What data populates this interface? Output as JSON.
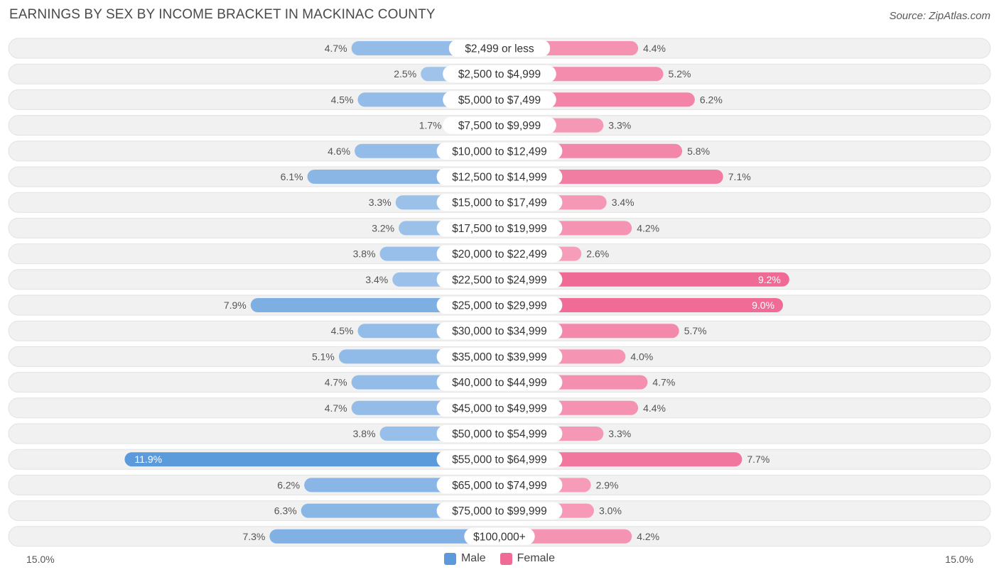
{
  "title": "EARNINGS BY SEX BY INCOME BRACKET IN MACKINAC COUNTY",
  "source": "Source: ZipAtlas.com",
  "colors": {
    "male_light": "#a8c8ec",
    "male_dark": "#5b9bdc",
    "female_light": "#f7a7c0",
    "female_dark": "#f06a96",
    "row_bg": "#f1f1f1"
  },
  "legend": {
    "male": "Male",
    "female": "Female"
  },
  "chart_data": {
    "type": "bar",
    "orientation": "horizontal-diverging",
    "title": "EARNINGS BY SEX BY INCOME BRACKET IN MACKINAC COUNTY",
    "axis_min_label": "15.0%",
    "axis_max_label": "15.0%",
    "xlim": [
      -15,
      15
    ],
    "categories": [
      "$2,499 or less",
      "$2,500 to $4,999",
      "$5,000 to $7,499",
      "$7,500 to $9,999",
      "$10,000 to $12,499",
      "$12,500 to $14,999",
      "$15,000 to $17,499",
      "$17,500 to $19,999",
      "$20,000 to $22,499",
      "$22,500 to $24,999",
      "$25,000 to $29,999",
      "$30,000 to $34,999",
      "$35,000 to $39,999",
      "$40,000 to $44,999",
      "$45,000 to $49,999",
      "$50,000 to $54,999",
      "$55,000 to $64,999",
      "$65,000 to $74,999",
      "$75,000 to $99,999",
      "$100,000+"
    ],
    "series": [
      {
        "name": "Male",
        "values": [
          4.7,
          2.5,
          4.5,
          1.7,
          4.6,
          6.1,
          3.3,
          3.2,
          3.8,
          3.4,
          7.9,
          4.5,
          5.1,
          4.7,
          4.7,
          3.8,
          11.9,
          6.2,
          6.3,
          7.3
        ],
        "labels": [
          "4.7%",
          "2.5%",
          "4.5%",
          "1.7%",
          "4.6%",
          "6.1%",
          "3.3%",
          "3.2%",
          "3.8%",
          "3.4%",
          "7.9%",
          "4.5%",
          "5.1%",
          "4.7%",
          "4.7%",
          "3.8%",
          "11.9%",
          "6.2%",
          "6.3%",
          "7.3%"
        ]
      },
      {
        "name": "Female",
        "values": [
          4.4,
          5.2,
          6.2,
          3.3,
          5.8,
          7.1,
          3.4,
          4.2,
          2.6,
          9.2,
          9.0,
          5.7,
          4.0,
          4.7,
          4.4,
          3.3,
          7.7,
          2.9,
          3.0,
          4.2
        ],
        "labels": [
          "4.4%",
          "5.2%",
          "6.2%",
          "3.3%",
          "5.8%",
          "7.1%",
          "3.4%",
          "4.2%",
          "2.6%",
          "9.2%",
          "9.0%",
          "5.7%",
          "4.0%",
          "4.7%",
          "4.4%",
          "3.3%",
          "7.7%",
          "2.9%",
          "3.0%",
          "4.2%"
        ]
      }
    ]
  }
}
